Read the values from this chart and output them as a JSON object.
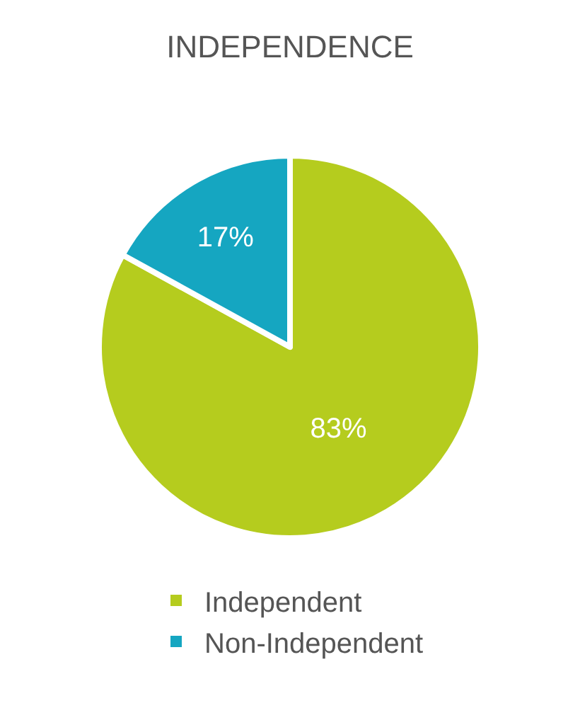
{
  "chart_data": {
    "type": "pie",
    "title": "INDEPENDENCE",
    "categories": [
      "Independent",
      "Non-Independent"
    ],
    "values": [
      83,
      17
    ],
    "colors": [
      "#b5cc1e",
      "#15a6c1"
    ],
    "value_labels": [
      "83%",
      "17%"
    ],
    "legend": "bottom"
  }
}
